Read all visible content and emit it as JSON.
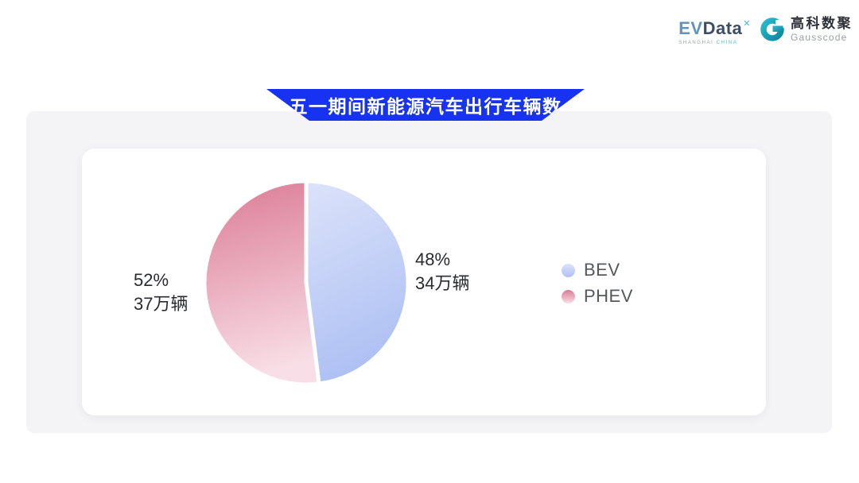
{
  "header": {
    "evdata_logo": {
      "ev": "EV",
      "data": "Data",
      "mark": "✕",
      "sub_left": "SHANGHAI",
      "sub_right": "CHINA"
    },
    "gausscode_logo": {
      "cn": "高科数聚",
      "en": "Gausscode"
    }
  },
  "banner": {
    "title": "五一期间新能源汽车出行车辆数",
    "color": "#1733f1"
  },
  "chart_data": {
    "type": "pie",
    "title": "五一期间新能源汽车出行车辆数",
    "unit": "万辆",
    "start_angle": "12-oclock",
    "direction": "clockwise",
    "legend_position": "right",
    "slice_gap_color": "#ffffff",
    "series": [
      {
        "name": "BEV",
        "percent": 48,
        "value": 34,
        "percent_label": "48%",
        "value_label": "34万辆",
        "color_top": "#dce3fa",
        "color_bottom": "#aec0f3"
      },
      {
        "name": "PHEV",
        "percent": 52,
        "value": 37,
        "percent_label": "52%",
        "value_label": "37万辆",
        "color_top": "#db7b95",
        "color_bottom": "#f8dee6"
      }
    ]
  }
}
